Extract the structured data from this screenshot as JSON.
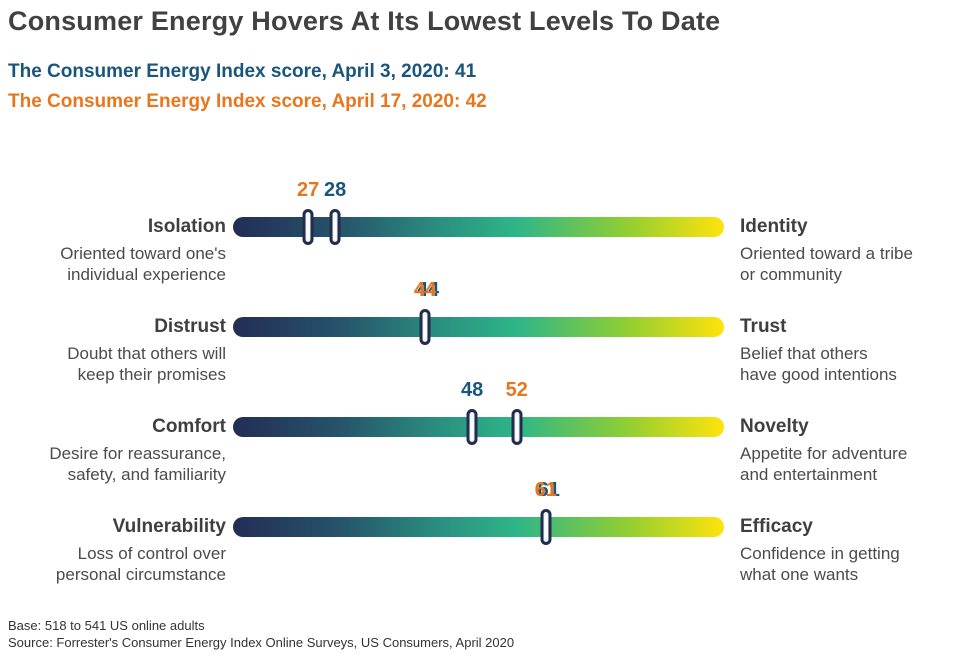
{
  "header": {
    "title": "Consumer Energy Hovers At Its Lowest Levels To Date",
    "subtitle_april3": "The Consumer Energy Index score, April 3, 2020: 41",
    "subtitle_april17": "The Consumer Energy Index score, April 17, 2020: 42"
  },
  "colors": {
    "title_gray": "#414141",
    "april3_blue": "#19567c",
    "april17_orange": "#e8761c",
    "marker_border_navy": "#212c4e",
    "bar_gradient_start": "#232d55",
    "bar_gradient_mid": "#2eb688",
    "bar_gradient_end": "#ffe30b"
  },
  "rows": [
    {
      "left": {
        "name": "Isolation",
        "desc_line1": "Oriented toward one's",
        "desc_line2": "individual experience"
      },
      "right": {
        "name": "Identity",
        "desc_line1": "Oriented toward a tribe",
        "desc_line2": "or community"
      },
      "markers": [
        {
          "label": "27",
          "series": "April 17, 2020",
          "color": "orange",
          "position_pct": 15.3
        },
        {
          "label": "28",
          "series": "April 3, 2020",
          "color": "blue",
          "position_pct": 20.8
        }
      ]
    },
    {
      "left": {
        "name": "Distrust",
        "desc_line1": "Doubt that others will",
        "desc_line2": "keep their promises"
      },
      "right": {
        "name": "Trust",
        "desc_line1": "Belief that others",
        "desc_line2": "have good intentions"
      },
      "markers": [
        {
          "label": "44",
          "series": "both (April 3 and April 17 overlap)",
          "color": "dual",
          "position_pct": 39.1
        }
      ]
    },
    {
      "left": {
        "name": "Comfort",
        "desc_line1": "Desire for reassurance,",
        "desc_line2": "safety, and familiarity"
      },
      "right": {
        "name": "Novelty",
        "desc_line1": "Appetite for adventure",
        "desc_line2": "and entertainment"
      },
      "markers": [
        {
          "label": "48",
          "series": "April 3, 2020",
          "color": "blue",
          "position_pct": 48.7
        },
        {
          "label": "52",
          "series": "April 17, 2020",
          "color": "orange",
          "position_pct": 57.8
        }
      ]
    },
    {
      "left": {
        "name": "Vulnerability",
        "desc_line1": "Loss of control over",
        "desc_line2": "personal circumstance"
      },
      "right": {
        "name": "Efficacy",
        "desc_line1": "Confidence in getting",
        "desc_line2": "what one wants"
      },
      "markers": [
        {
          "label": "61",
          "series": "both (April 3 and April 17 overlap)",
          "color": "dual",
          "position_pct": 63.7
        }
      ]
    }
  ],
  "footer": {
    "base_line": "Base: 518 to 541 US online adults",
    "source_line": "Source: Forrester's Consumer Energy Index Online Surveys, US Consumers, April 2020"
  },
  "chart_data": {
    "type": "scatter",
    "subtype": "bipolar-scale-slider-chart",
    "title": "Consumer Energy Hovers At Its Lowest Levels To Date",
    "scale_min": 0,
    "scale_max": 100,
    "categories": [
      "Isolation vs. Identity",
      "Distrust vs. Trust",
      "Comfort vs. Novelty",
      "Vulnerability vs. Efficacy"
    ],
    "pole_left": [
      "Isolation",
      "Distrust",
      "Comfort",
      "Vulnerability"
    ],
    "pole_right": [
      "Identity",
      "Trust",
      "Novelty",
      "Efficacy"
    ],
    "series": [
      {
        "name": "April 3, 2020",
        "color": "#19567c",
        "index_score": 41,
        "values": [
          28,
          44,
          48,
          61
        ]
      },
      {
        "name": "April 17, 2020",
        "color": "#e8761c",
        "index_score": 42,
        "values": [
          27,
          44,
          52,
          61
        ]
      }
    ],
    "grid": false,
    "legend_position": "none",
    "bar_gradient": [
      "#232d55",
      "#2eb688",
      "#ffe30b"
    ]
  }
}
